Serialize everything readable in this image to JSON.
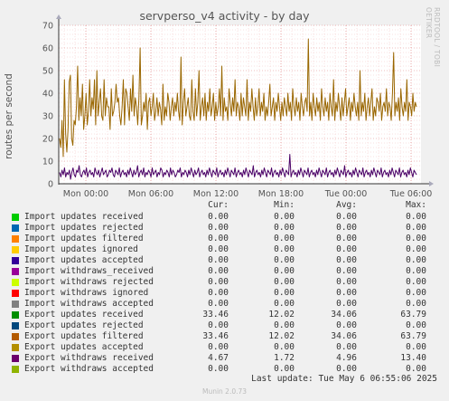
{
  "title": "servperso_v4 activity - by day",
  "side_credit": "RRDTOOL / TOBI OETIKER",
  "footer": "Munin 2.0.73",
  "last_update": "Last update: Tue May  6 06:55:06 2025",
  "chart_data": {
    "type": "line",
    "ylabel": "routes per second",
    "ylim": [
      0,
      70
    ],
    "yticks": [
      0,
      10,
      20,
      30,
      40,
      50,
      60,
      70
    ],
    "xticks": [
      "Mon 00:00",
      "Mon 06:00",
      "Mon 12:00",
      "Mon 18:00",
      "Tue 00:00",
      "Tue 06:00"
    ],
    "grid": true,
    "series": [
      {
        "name": "Export updates received",
        "color": "#996600",
        "values": [
          20,
          16,
          28,
          12,
          46,
          22,
          14,
          24,
          45,
          48,
          20,
          17,
          28,
          26,
          34,
          52,
          28,
          38,
          30,
          44,
          24,
          30,
          40,
          26,
          32,
          46,
          30,
          38,
          33,
          46,
          26,
          50,
          30,
          36,
          42,
          30,
          28,
          46,
          30,
          38,
          34,
          34,
          24,
          42,
          30,
          32,
          36,
          44,
          36,
          38,
          30,
          26,
          34,
          46,
          26,
          42,
          40,
          34,
          28,
          42,
          32,
          48,
          30,
          38,
          34,
          26,
          38,
          60,
          26,
          30,
          36,
          32,
          40,
          24,
          36,
          38,
          30,
          34,
          40,
          28,
          32,
          38,
          30,
          36,
          33,
          26,
          44,
          28,
          34,
          30,
          40,
          36,
          28,
          34,
          38,
          30,
          36,
          32,
          40,
          32,
          28,
          56,
          26,
          36,
          42,
          30,
          34,
          38,
          30,
          28,
          46,
          32,
          28,
          42,
          30,
          36,
          50,
          28,
          34,
          38,
          30,
          40,
          28,
          36,
          32,
          42,
          30,
          34,
          40,
          28,
          36,
          30,
          34,
          42,
          30,
          52,
          28,
          38,
          32,
          34,
          28,
          42,
          36,
          30,
          38,
          32,
          46,
          30,
          36,
          34,
          28,
          40,
          30,
          38,
          34,
          30,
          46,
          28,
          36,
          32,
          42,
          34,
          28,
          38,
          30,
          34,
          42,
          30,
          36,
          32,
          40,
          28,
          34,
          30,
          36,
          44,
          30,
          34,
          38,
          28,
          36,
          32,
          40,
          34,
          28,
          36,
          30,
          38,
          34,
          30,
          40,
          32,
          36,
          28,
          42,
          34,
          30,
          38,
          32,
          36,
          28,
          40,
          34,
          30,
          36,
          38,
          32,
          64,
          30,
          36,
          28,
          40,
          34,
          30,
          38,
          32,
          36,
          28,
          42,
          34,
          30,
          38,
          32,
          36,
          28,
          40,
          34,
          30,
          46,
          28,
          36,
          32,
          40,
          34,
          28,
          38,
          30,
          36,
          42,
          30,
          34,
          38,
          28,
          36,
          32,
          40,
          34,
          30,
          36,
          28,
          50,
          30,
          36,
          32,
          40,
          28,
          34,
          38,
          30,
          36,
          42,
          28,
          34,
          30,
          38,
          36,
          32,
          40,
          28,
          34,
          36,
          32,
          42,
          30,
          36,
          34,
          28,
          40,
          58,
          30,
          36,
          32,
          38,
          28,
          42,
          34,
          30,
          36,
          32,
          46,
          28,
          36,
          34,
          30,
          40,
          32,
          36,
          34
        ],
        "first_point_value": 20,
        "current": "33.46",
        "note": ""
      },
      {
        "name": "Export withdraws received",
        "color": "#4a0066",
        "values": [
          5,
          3,
          6,
          4,
          7,
          3,
          5,
          4,
          6,
          2,
          5,
          7,
          4,
          3,
          6,
          5,
          8,
          4,
          3,
          5,
          6,
          4,
          7,
          3,
          5,
          6,
          4,
          5,
          3,
          7,
          5,
          4,
          6,
          3,
          5,
          7,
          4,
          5,
          6,
          3,
          4,
          6,
          5,
          7,
          4,
          3,
          6,
          5,
          4,
          7,
          3,
          5,
          6,
          4,
          5,
          3,
          6,
          4,
          7,
          5,
          3,
          6,
          4,
          5,
          8,
          3,
          5,
          6,
          4,
          7,
          3,
          5,
          4,
          6,
          5,
          3,
          7,
          4,
          5,
          6,
          3,
          5,
          4,
          7,
          6,
          3,
          5,
          4,
          6,
          5,
          3,
          7,
          4,
          6,
          5,
          3,
          4,
          6,
          5,
          7,
          3,
          5,
          4,
          6,
          5,
          3,
          6,
          4,
          7,
          5,
          3,
          6,
          4,
          5,
          7,
          3,
          5,
          6,
          4,
          5,
          3,
          6,
          4,
          7,
          5,
          3,
          6,
          5,
          4,
          7,
          3,
          5,
          6,
          4,
          5,
          3,
          6,
          4,
          7,
          5,
          3,
          6,
          5,
          4,
          7,
          3,
          5,
          6,
          4,
          5,
          3,
          6,
          4,
          7,
          5,
          3,
          6,
          5,
          4,
          8,
          3,
          5,
          6,
          4,
          5,
          3,
          6,
          4,
          7,
          5,
          3,
          6,
          5,
          4,
          7,
          3,
          5,
          6,
          4,
          5,
          3,
          6,
          4,
          7,
          5,
          3,
          6,
          5,
          4,
          13,
          3,
          5,
          6,
          4,
          5,
          3,
          6,
          4,
          7,
          5,
          3,
          6,
          5,
          4,
          7,
          3,
          5,
          6,
          4,
          5,
          3,
          6,
          4,
          7,
          5,
          3,
          6,
          5,
          4,
          7,
          3,
          5,
          6,
          4,
          5,
          3,
          6,
          4,
          7,
          5,
          3,
          6,
          5,
          4,
          8,
          3,
          5,
          6,
          4,
          5,
          3,
          6,
          4,
          7,
          5,
          3,
          6,
          5,
          4,
          7,
          3,
          5,
          6,
          4,
          5,
          3,
          6,
          4,
          7,
          5,
          3,
          6,
          5,
          4,
          7,
          3,
          5,
          6,
          4,
          5,
          3,
          6,
          4,
          7,
          5,
          3,
          6,
          5,
          4,
          7,
          3,
          5,
          6,
          4,
          5,
          3,
          6,
          4,
          7,
          5,
          3,
          6,
          5,
          4
        ]
      }
    ]
  },
  "legend": {
    "headers": {
      "cur": "Cur:",
      "min": "Min:",
      "avg": "Avg:",
      "max": "Max:"
    },
    "rows": [
      {
        "label": "Import updates received",
        "color": "#00cc00",
        "cur": "0.00",
        "min": "0.00",
        "avg": "0.00",
        "max": "0.00"
      },
      {
        "label": "Import updates rejected",
        "color": "#0066b3",
        "cur": "0.00",
        "min": "0.00",
        "avg": "0.00",
        "max": "0.00"
      },
      {
        "label": "Import updates filtered",
        "color": "#ff8000",
        "cur": "0.00",
        "min": "0.00",
        "avg": "0.00",
        "max": "0.00"
      },
      {
        "label": "Import updates ignored",
        "color": "#ffcc00",
        "cur": "0.00",
        "min": "0.00",
        "avg": "0.00",
        "max": "0.00"
      },
      {
        "label": "Import updates accepted",
        "color": "#330099",
        "cur": "0.00",
        "min": "0.00",
        "avg": "0.00",
        "max": "0.00"
      },
      {
        "label": "Import withdraws_received",
        "color": "#990099",
        "cur": "0.00",
        "min": "0.00",
        "avg": "0.00",
        "max": "0.00"
      },
      {
        "label": "Import withdraws rejected",
        "color": "#ccff00",
        "cur": "0.00",
        "min": "0.00",
        "avg": "0.00",
        "max": "0.00"
      },
      {
        "label": "Import withdraws ignored",
        "color": "#ff0000",
        "cur": "0.00",
        "min": "0.00",
        "avg": "0.00",
        "max": "0.00"
      },
      {
        "label": "Import withdraws accepted",
        "color": "#808080",
        "cur": "0.00",
        "min": "0.00",
        "avg": "0.00",
        "max": "0.00"
      },
      {
        "label": "Export updates received",
        "color": "#008f00",
        "cur": "33.46",
        "min": "12.02",
        "avg": "34.06",
        "max": "63.79"
      },
      {
        "label": "Export updates rejected",
        "color": "#00487d",
        "cur": "0.00",
        "min": "0.00",
        "avg": "0.00",
        "max": "0.00"
      },
      {
        "label": "Export updates filtered",
        "color": "#b35a00",
        "cur": "33.46",
        "min": "12.02",
        "avg": "34.06",
        "max": "63.79"
      },
      {
        "label": "Export updates accepted",
        "color": "#b38f00",
        "cur": "0.00",
        "min": "0.00",
        "avg": "0.00",
        "max": "0.00"
      },
      {
        "label": "Export withdraws received",
        "color": "#6b006b",
        "cur": "4.67",
        "min": "1.72",
        "avg": "4.96",
        "max": "13.40"
      },
      {
        "label": "Export withdraws accepted",
        "color": "#8fb300",
        "cur": "0.00",
        "min": "0.00",
        "avg": "0.00",
        "max": "0.00"
      }
    ]
  }
}
